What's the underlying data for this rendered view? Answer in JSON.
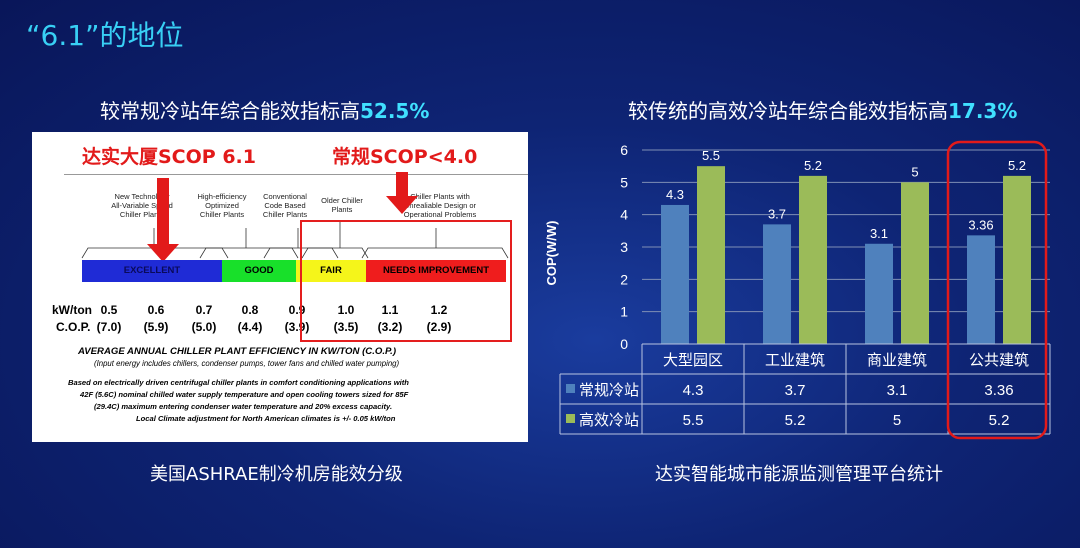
{
  "page_title": "“6.1”的地位",
  "left": {
    "subtitle_prefix": "较常规冷站年综合能效指标高",
    "subtitle_highlight": "52.5%",
    "caption": "美国ASHRAE制冷机房能效分级",
    "annotation_dashi": "达实大厦SCOP 6.1",
    "annotation_normal": "常规SCOP<4.0",
    "plant_labels": [
      "New Technology\nAll-Variable Speed\nChiller Plants",
      "High-efficiency\nOptimized\nChiller Plants",
      "Conventional\nCode Based\nChiller Plants",
      "Older Chiller\nPlants",
      "Chiller Plants with\nUnrealiable Design or\nOperational Problems"
    ],
    "scale": [
      "EXCELLENT",
      "GOOD",
      "FAIR",
      "NEEDS IMPROVEMENT"
    ],
    "scale_colors": [
      "#1f2bd6",
      "#18e02a",
      "#f5f51a",
      "#ef1d1d"
    ],
    "kw_label": "kW/ton",
    "cop_label": "C.O.P.",
    "kw_values": [
      "0.5",
      "0.6",
      "0.7",
      "0.8",
      "0.9",
      "1.0",
      "1.1",
      "1.2"
    ],
    "cop_values": [
      "(7.0)",
      "(5.9)",
      "(5.0)",
      "(4.4)",
      "(3.9)",
      "(3.5)",
      "(3.2)",
      "(2.9)"
    ],
    "avg_title": "AVERAGE ANNUAL CHILLER PLANT EFFICIENCY IN KW/TON (C.O.P.)",
    "avg_note": "(Input energy includes chillers, condenser pumps, tower fans and chilled water pumping)",
    "basis_lines": [
      "Based on electrically driven centrifugal chiller plants in comfort conditioning applications with",
      "42F (5.6C) nominal chilled water supply temperature and open cooling towers sized for 85F",
      "(29.4C) maximum entering condenser water temperature and 20% excess capacity.",
      "Local Climate adjustment for North American climates is +/- 0.05 kW/ton"
    ]
  },
  "right": {
    "subtitle_prefix": "较传统的高效冷站年综合能效指标高",
    "subtitle_highlight": "17.3%",
    "caption": "达实智能城市能源监测管理平台统计"
  },
  "colors": {
    "series_normal": "#4f81bd",
    "series_high": "#9bbb59",
    "highlight": "#e21a1a"
  },
  "chart_data": {
    "type": "bar",
    "categories": [
      "大型园区",
      "工业建筑",
      "商业建筑",
      "公共建筑"
    ],
    "series": [
      {
        "name": "常规冷站",
        "values": [
          4.3,
          3.7,
          3.1,
          3.36
        ],
        "labels": [
          "4.3",
          "3.7",
          "3.1",
          "3.36"
        ]
      },
      {
        "name": "高效冷站",
        "values": [
          5.5,
          5.2,
          5,
          5.2
        ],
        "labels": [
          "5.5",
          "5.2",
          "5",
          "5.2"
        ]
      }
    ],
    "ylabel": "COP(W/W)",
    "ylim": [
      0,
      6
    ],
    "yticks": [
      "0",
      "1",
      "2",
      "3",
      "4",
      "5",
      "6"
    ],
    "grid": true,
    "data_table": true
  }
}
